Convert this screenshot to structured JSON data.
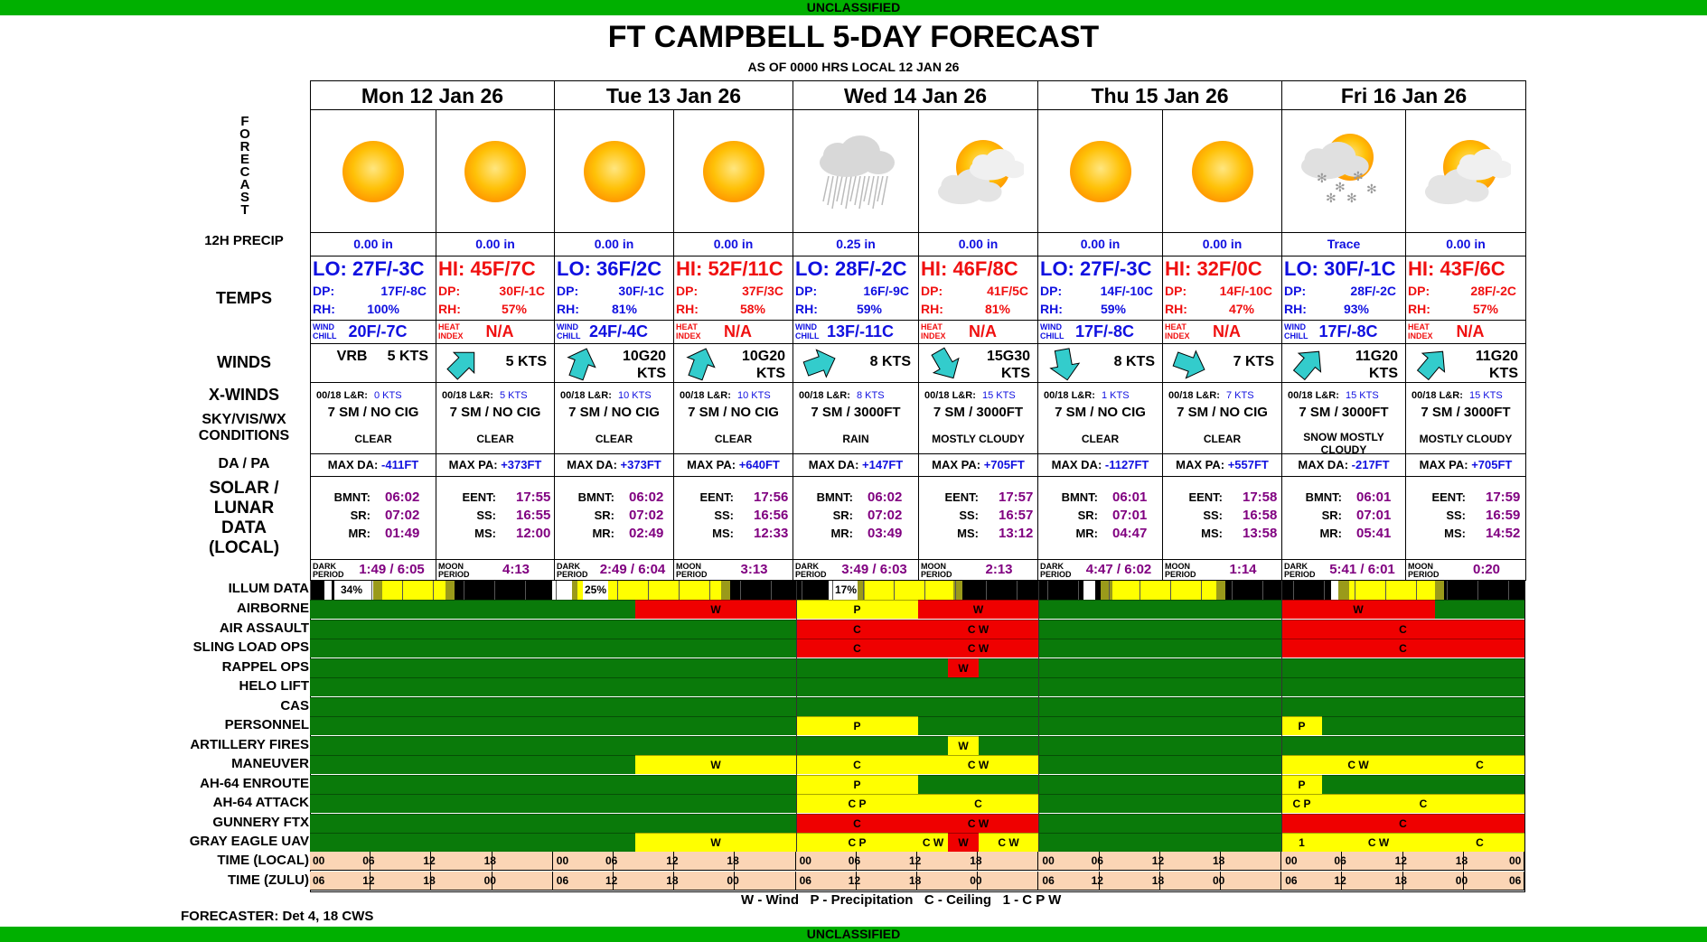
{
  "banner": {
    "top": "UNCLASSIFIED",
    "bottom": "UNCLASSIFIED"
  },
  "title": "FT CAMPBELL 5-DAY FORECAST",
  "subtitle": "AS OF 0000 HRS LOCAL 12 JAN 26",
  "labels": {
    "forecast": "FORECAST",
    "precip": "12H PRECIP",
    "temps": "TEMPS",
    "winds": "WINDS",
    "xwinds": "X-WINDS",
    "sky1": "SKY/VIS/WX",
    "sky2": "CONDITIONS",
    "dapa": "DA / PA",
    "solar1": "SOLAR /",
    "solar2": "LUNAR",
    "solar3": "DATA",
    "solar4": "(LOCAL)",
    "illum": "ILLUM DATA",
    "time_local": "TIME (LOCAL)",
    "time_zulu": "TIME (ZULU)"
  },
  "common": {
    "dp": "DP:",
    "rh": "RH:",
    "wind1": "WIND",
    "wind2": "CHILL",
    "heat1": "HEAT",
    "heat2": "INDEX",
    "xw_prefix": "00/18 L&R:",
    "bmnt": "BMNT:",
    "sr": "SR:",
    "mr": "MR:",
    "eent": "EENT:",
    "ss": "SS:",
    "ms": "MS:",
    "dark1": "DARK",
    "dark2": "PERIOD",
    "moon1": "MOON",
    "moon2": "PERIOD"
  },
  "days": [
    {
      "header": "Mon 12 Jan 26",
      "day": {
        "icon": "sun-icon",
        "precip": "0.00 in",
        "temp": "LO: 27F/-3C",
        "dp": "17F/-8C",
        "rh": "100%",
        "index": "20F/-7C",
        "wind_dir": "",
        "wind": "VRB     5 KTS",
        "xwind": "0 KTS",
        "sky": "7 SM / NO CIG",
        "wx": "CLEAR",
        "dapa_label": "MAX DA:",
        "dapa": "-411FT"
      },
      "night": {
        "icon": "sun-icon",
        "precip": "0.00 in",
        "temp": "HI: 45F/7C",
        "dp": "30F/-1C",
        "rh": "57%",
        "index": "N/A",
        "wind_dir": "225",
        "wind": "5 KTS",
        "xwind": "5 KTS",
        "sky": "7 SM / NO CIG",
        "wx": "CLEAR",
        "dapa_label": "MAX PA:",
        "dapa": "+373FT"
      },
      "bmnt": "06:02",
      "sr": "07:02",
      "mr": "01:49",
      "eent": "17:55",
      "ss": "16:55",
      "ms": "12:00",
      "dark": "1:49 / 6:05",
      "moon": "4:13",
      "illum": "34%"
    },
    {
      "header": "Tue 13 Jan 26",
      "day": {
        "icon": "sun-icon",
        "precip": "0.00 in",
        "temp": "LO: 36F/2C",
        "dp": "30F/-1C",
        "rh": "81%",
        "index": "24F/-4C",
        "wind_dir": "200",
        "wind": "10G20 KTS",
        "xwind": "10 KTS",
        "sky": "7 SM / NO CIG",
        "wx": "CLEAR",
        "dapa_label": "MAX DA:",
        "dapa": "+373FT"
      },
      "night": {
        "icon": "sun-icon",
        "precip": "0.00 in",
        "temp": "HI: 52F/11C",
        "dp": "37F/3C",
        "rh": "58%",
        "index": "N/A",
        "wind_dir": "200",
        "wind": "10G20 KTS",
        "xwind": "10 KTS",
        "sky": "7 SM / NO CIG",
        "wx": "CLEAR",
        "dapa_label": "MAX PA:",
        "dapa": "+640FT"
      },
      "bmnt": "06:02",
      "sr": "07:02",
      "mr": "02:49",
      "eent": "17:56",
      "ss": "16:56",
      "ms": "12:33",
      "dark": "2:49 / 6:04",
      "moon": "3:13",
      "illum": "25%"
    },
    {
      "header": "Wed 14 Jan 26",
      "day": {
        "icon": "rain-cloud-icon",
        "precip": "0.25 in",
        "temp": "LO: 28F/-2C",
        "dp": "16F/-9C",
        "rh": "59%",
        "index": "13F/-11C",
        "wind_dir": "250",
        "wind": "8 KTS",
        "xwind": "8 KTS",
        "sky": "7 SM / 3000FT",
        "wx": "RAIN",
        "dapa_label": "MAX DA:",
        "dapa": "+147FT"
      },
      "night": {
        "icon": "partly-cloudy-icon",
        "precip": "0.00 in",
        "temp": "HI: 46F/8C",
        "dp": "41F/5C",
        "rh": "81%",
        "index": "N/A",
        "wind_dir": "330",
        "wind": "15G30 KTS",
        "xwind": "15 KTS",
        "sky": "7 SM / 3000FT",
        "wx": "MOSTLY CLOUDY",
        "dapa_label": "MAX PA:",
        "dapa": "+705FT"
      },
      "bmnt": "06:02",
      "sr": "07:02",
      "mr": "03:49",
      "eent": "17:57",
      "ss": "16:57",
      "ms": "13:12",
      "dark": "3:49 / 6:03",
      "moon": "2:13",
      "illum": "17%"
    },
    {
      "header": "Thu 15 Jan 26",
      "day": {
        "icon": "sun-icon",
        "precip": "0.00 in",
        "temp": "LO: 27F/-3C",
        "dp": "14F/-10C",
        "rh": "59%",
        "index": "17F/-8C",
        "wind_dir": "350",
        "wind": "8 KTS",
        "xwind": "1 KTS",
        "sky": "7 SM / NO CIG",
        "wx": "CLEAR",
        "dapa_label": "MAX DA:",
        "dapa": "-1127FT"
      },
      "night": {
        "icon": "sun-icon",
        "precip": "0.00 in",
        "temp": "HI: 32F/0C",
        "dp": "14F/-10C",
        "rh": "47%",
        "index": "N/A",
        "wind_dir": "290",
        "wind": "7 KTS",
        "xwind": "7 KTS",
        "sky": "7 SM / NO CIG",
        "wx": "CLEAR",
        "dapa_label": "MAX PA:",
        "dapa": "+557FT"
      },
      "bmnt": "06:01",
      "sr": "07:01",
      "mr": "04:47",
      "eent": "17:58",
      "ss": "16:58",
      "ms": "13:58",
      "dark": "4:47 / 6:02",
      "moon": "1:14",
      "illum": ""
    },
    {
      "header": "Fri 16 Jan 26",
      "day": {
        "icon": "snow-cloud-icon",
        "precip": "Trace",
        "temp": "LO: 30F/-1C",
        "dp": "28F/-2C",
        "rh": "93%",
        "index": "17F/-8C",
        "wind_dir": "220",
        "wind": "11G20 KTS",
        "xwind": "15 KTS",
        "sky": "7 SM / 3000FT",
        "wx": "SNOW MOSTLY CLOUDY",
        "dapa_label": "MAX DA:",
        "dapa": "-217FT"
      },
      "night": {
        "icon": "partly-cloudy-icon",
        "precip": "0.00 in",
        "temp": "HI: 43F/6C",
        "dp": "28F/-2C",
        "rh": "57%",
        "index": "N/A",
        "wind_dir": "220",
        "wind": "11G20 KTS",
        "xwind": "15 KTS",
        "sky": "7 SM / 3000FT",
        "wx": "MOSTLY CLOUDY",
        "dapa_label": "MAX PA:",
        "dapa": "+705FT"
      },
      "bmnt": "06:01",
      "sr": "07:01",
      "mr": "05:41",
      "eent": "17:59",
      "ss": "16:59",
      "ms": "14:52",
      "dark": "5:41 / 6:01",
      "moon": "0:20",
      "illum": ""
    }
  ],
  "colors": {
    "green": "#0a7a0a",
    "yellow": "#ffff00",
    "red": "#ef0000",
    "time_bg": "#fbd5b5",
    "banner": "#00b000",
    "blue": "#1010e0",
    "red_text": "#f01010",
    "purple": "#800080",
    "wind_arrow": "#33cccc"
  },
  "illum_bar": [
    [
      "K",
      0,
      16
    ],
    [
      "W",
      16,
      24
    ],
    [
      "K",
      24,
      27
    ],
    [
      "W",
      27,
      70
    ],
    [
      "O",
      70,
      80
    ],
    [
      "Y",
      80,
      150
    ],
    [
      "O",
      150,
      160
    ],
    [
      "K",
      160,
      268
    ],
    [
      "W",
      268,
      290
    ],
    [
      "O",
      290,
      296
    ],
    [
      "Y",
      296,
      455
    ],
    [
      "O",
      455,
      465
    ],
    [
      "K",
      465,
      538
    ],
    [
      "K",
      538,
      574
    ],
    [
      "W",
      574,
      605
    ],
    [
      "O",
      605,
      614
    ],
    [
      "Y",
      614,
      712
    ],
    [
      "O",
      712,
      722
    ],
    [
      "K",
      722,
      806
    ],
    [
      "K",
      806,
      856
    ],
    [
      "W",
      856,
      869
    ],
    [
      "K",
      869,
      875
    ],
    [
      "O",
      875,
      888
    ],
    [
      "Y",
      888,
      1003
    ],
    [
      "O",
      1003,
      1013
    ],
    [
      "K",
      1013,
      1075
    ],
    [
      "K",
      1075,
      1130
    ],
    [
      "W",
      1130,
      1138
    ],
    [
      "O",
      1138,
      1150
    ],
    [
      "Y",
      1150,
      1245
    ],
    [
      "O",
      1245,
      1255
    ],
    [
      "K",
      1255,
      1344
    ]
  ],
  "illum_marks": [
    [
      "34%",
      32,
      60
    ],
    [
      "25%",
      302,
      330
    ],
    [
      "17%",
      580,
      606
    ]
  ],
  "impacts": [
    {
      "name": "AIRBORNE",
      "segs": [
        [
          "G",
          0,
          360
        ],
        [
          "R",
          360,
          538,
          "W"
        ],
        [
          "Y",
          538,
          673,
          "P"
        ],
        [
          "R",
          673,
          806,
          "W"
        ],
        [
          "G",
          806,
          1075
        ],
        [
          "R",
          1075,
          1245,
          "W"
        ],
        [
          "G",
          1245,
          1344
        ]
      ]
    },
    {
      "name": "AIR ASSAULT",
      "segs": [
        [
          "G",
          0,
          538
        ],
        [
          "R",
          538,
          673,
          "C"
        ],
        [
          "R",
          673,
          806,
          "C W"
        ],
        [
          "G",
          806,
          1075
        ],
        [
          "R",
          1075,
          1344,
          "C"
        ]
      ]
    },
    {
      "name": "SLING LOAD OPS",
      "segs": [
        [
          "G",
          0,
          538
        ],
        [
          "R",
          538,
          673,
          "C"
        ],
        [
          "R",
          673,
          806,
          "C W"
        ],
        [
          "G",
          806,
          1075
        ],
        [
          "R",
          1075,
          1344,
          "C"
        ]
      ]
    },
    {
      "name": "RAPPEL OPS",
      "segs": [
        [
          "G",
          0,
          706
        ],
        [
          "R",
          706,
          740,
          "W"
        ],
        [
          "G",
          740,
          1344
        ]
      ]
    },
    {
      "name": "HELO LIFT",
      "segs": [
        [
          "G",
          0,
          1344
        ]
      ]
    },
    {
      "name": "CAS",
      "segs": [
        [
          "G",
          0,
          1344
        ]
      ]
    },
    {
      "name": "PERSONNEL",
      "segs": [
        [
          "G",
          0,
          538
        ],
        [
          "Y",
          538,
          673,
          "P"
        ],
        [
          "G",
          673,
          1075
        ],
        [
          "Y",
          1075,
          1120,
          "P"
        ],
        [
          "G",
          1120,
          1344
        ]
      ]
    },
    {
      "name": "ARTILLERY FIRES",
      "segs": [
        [
          "G",
          0,
          706
        ],
        [
          "Y",
          706,
          740,
          "W"
        ],
        [
          "G",
          740,
          1344
        ]
      ]
    },
    {
      "name": "MANEUVER",
      "segs": [
        [
          "G",
          0,
          360
        ],
        [
          "Y",
          360,
          538,
          "W"
        ],
        [
          "Y",
          538,
          673,
          "C"
        ],
        [
          "Y",
          673,
          806,
          "C W"
        ],
        [
          "G",
          806,
          1075
        ],
        [
          "Y",
          1075,
          1245,
          "C W"
        ],
        [
          "Y",
          1245,
          1344,
          "C"
        ]
      ]
    },
    {
      "name": "AH-64 ENROUTE",
      "segs": [
        [
          "G",
          0,
          538
        ],
        [
          "Y",
          538,
          673,
          "P"
        ],
        [
          "G",
          673,
          1075
        ],
        [
          "Y",
          1075,
          1120,
          "P"
        ],
        [
          "G",
          1120,
          1344
        ]
      ]
    },
    {
      "name": "AH-64 ATTACK",
      "segs": [
        [
          "G",
          0,
          538
        ],
        [
          "Y",
          538,
          673,
          "C P"
        ],
        [
          "Y",
          673,
          806,
          "C"
        ],
        [
          "G",
          806,
          1075
        ],
        [
          "Y",
          1075,
          1120,
          "C P"
        ],
        [
          "Y",
          1120,
          1344,
          "C"
        ]
      ]
    },
    {
      "name": "GUNNERY FTX",
      "segs": [
        [
          "G",
          0,
          538
        ],
        [
          "R",
          538,
          673,
          "C"
        ],
        [
          "R",
          673,
          806,
          "C W"
        ],
        [
          "G",
          806,
          1075
        ],
        [
          "R",
          1075,
          1344,
          "C"
        ]
      ]
    },
    {
      "name": "GRAY EAGLE UAV",
      "segs": [
        [
          "G",
          0,
          360
        ],
        [
          "Y",
          360,
          538,
          "W"
        ],
        [
          "Y",
          538,
          673,
          "C P"
        ],
        [
          "Y",
          673,
          706,
          "C W"
        ],
        [
          "R",
          706,
          740,
          "W"
        ],
        [
          "Y",
          740,
          806,
          "C W"
        ],
        [
          "G",
          806,
          1075
        ],
        [
          "Y",
          1075,
          1120,
          "1"
        ],
        [
          "Y",
          1120,
          1245,
          "C W"
        ],
        [
          "Y",
          1245,
          1344,
          "C"
        ]
      ]
    }
  ],
  "time_local": [
    "00",
    "06",
    "12",
    "18",
    "00",
    "06",
    "12",
    "18",
    "00",
    "06",
    "12",
    "18",
    "00",
    "06",
    "12",
    "18",
    "00",
    "06",
    "12",
    "18",
    "00"
  ],
  "time_zulu": [
    "06",
    "12",
    "18",
    "00",
    "06",
    "12",
    "18",
    "00",
    "06",
    "12",
    "18",
    "00",
    "06",
    "12",
    "18",
    "00",
    "06",
    "12",
    "18",
    "00",
    "06"
  ],
  "legend": "W - Wind   P - Precipitation   C - Ceiling   1 - C P W",
  "forecaster": "FORECASTER: Det 4, 18 CWS"
}
